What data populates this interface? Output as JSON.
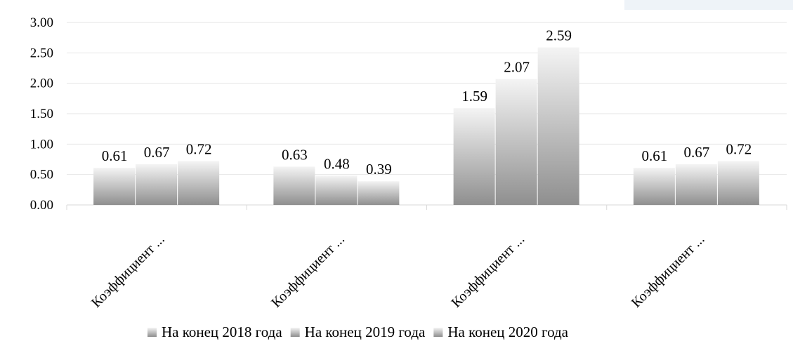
{
  "chart_data": {
    "type": "bar",
    "categories": [
      "Коэффициент ...",
      "Коэффициент ...",
      "Коэффициент ...",
      "Коэффициент ..."
    ],
    "series": [
      {
        "name": "На конец 2018 года",
        "values": [
          0.61,
          0.63,
          1.59,
          0.61
        ]
      },
      {
        "name": "На конец 2019 года",
        "values": [
          0.67,
          0.48,
          2.07,
          0.67
        ]
      },
      {
        "name": "На конец 2020 года",
        "values": [
          0.72,
          0.39,
          2.59,
          0.72
        ]
      }
    ],
    "data_labels": [
      [
        "0.61",
        "0.63",
        "1.59",
        "0.61"
      ],
      [
        "0.67",
        "0.48",
        "2.07",
        "0.67"
      ],
      [
        "0.72",
        "0.39",
        "2.59",
        "0.72"
      ]
    ],
    "yticks": [
      "0.00",
      "0.50",
      "1.00",
      "1.50",
      "2.00",
      "2.50",
      "3.00"
    ],
    "ylim": [
      0,
      3
    ],
    "title": "",
    "xlabel": "",
    "ylabel": "",
    "grid": true,
    "legend_position": "bottom",
    "colors": {
      "bar_top": "#f4f4f4",
      "bar_bottom": "#8f8f8f",
      "grid": "#e6e6e6",
      "axis": "#d9d9d9"
    }
  }
}
